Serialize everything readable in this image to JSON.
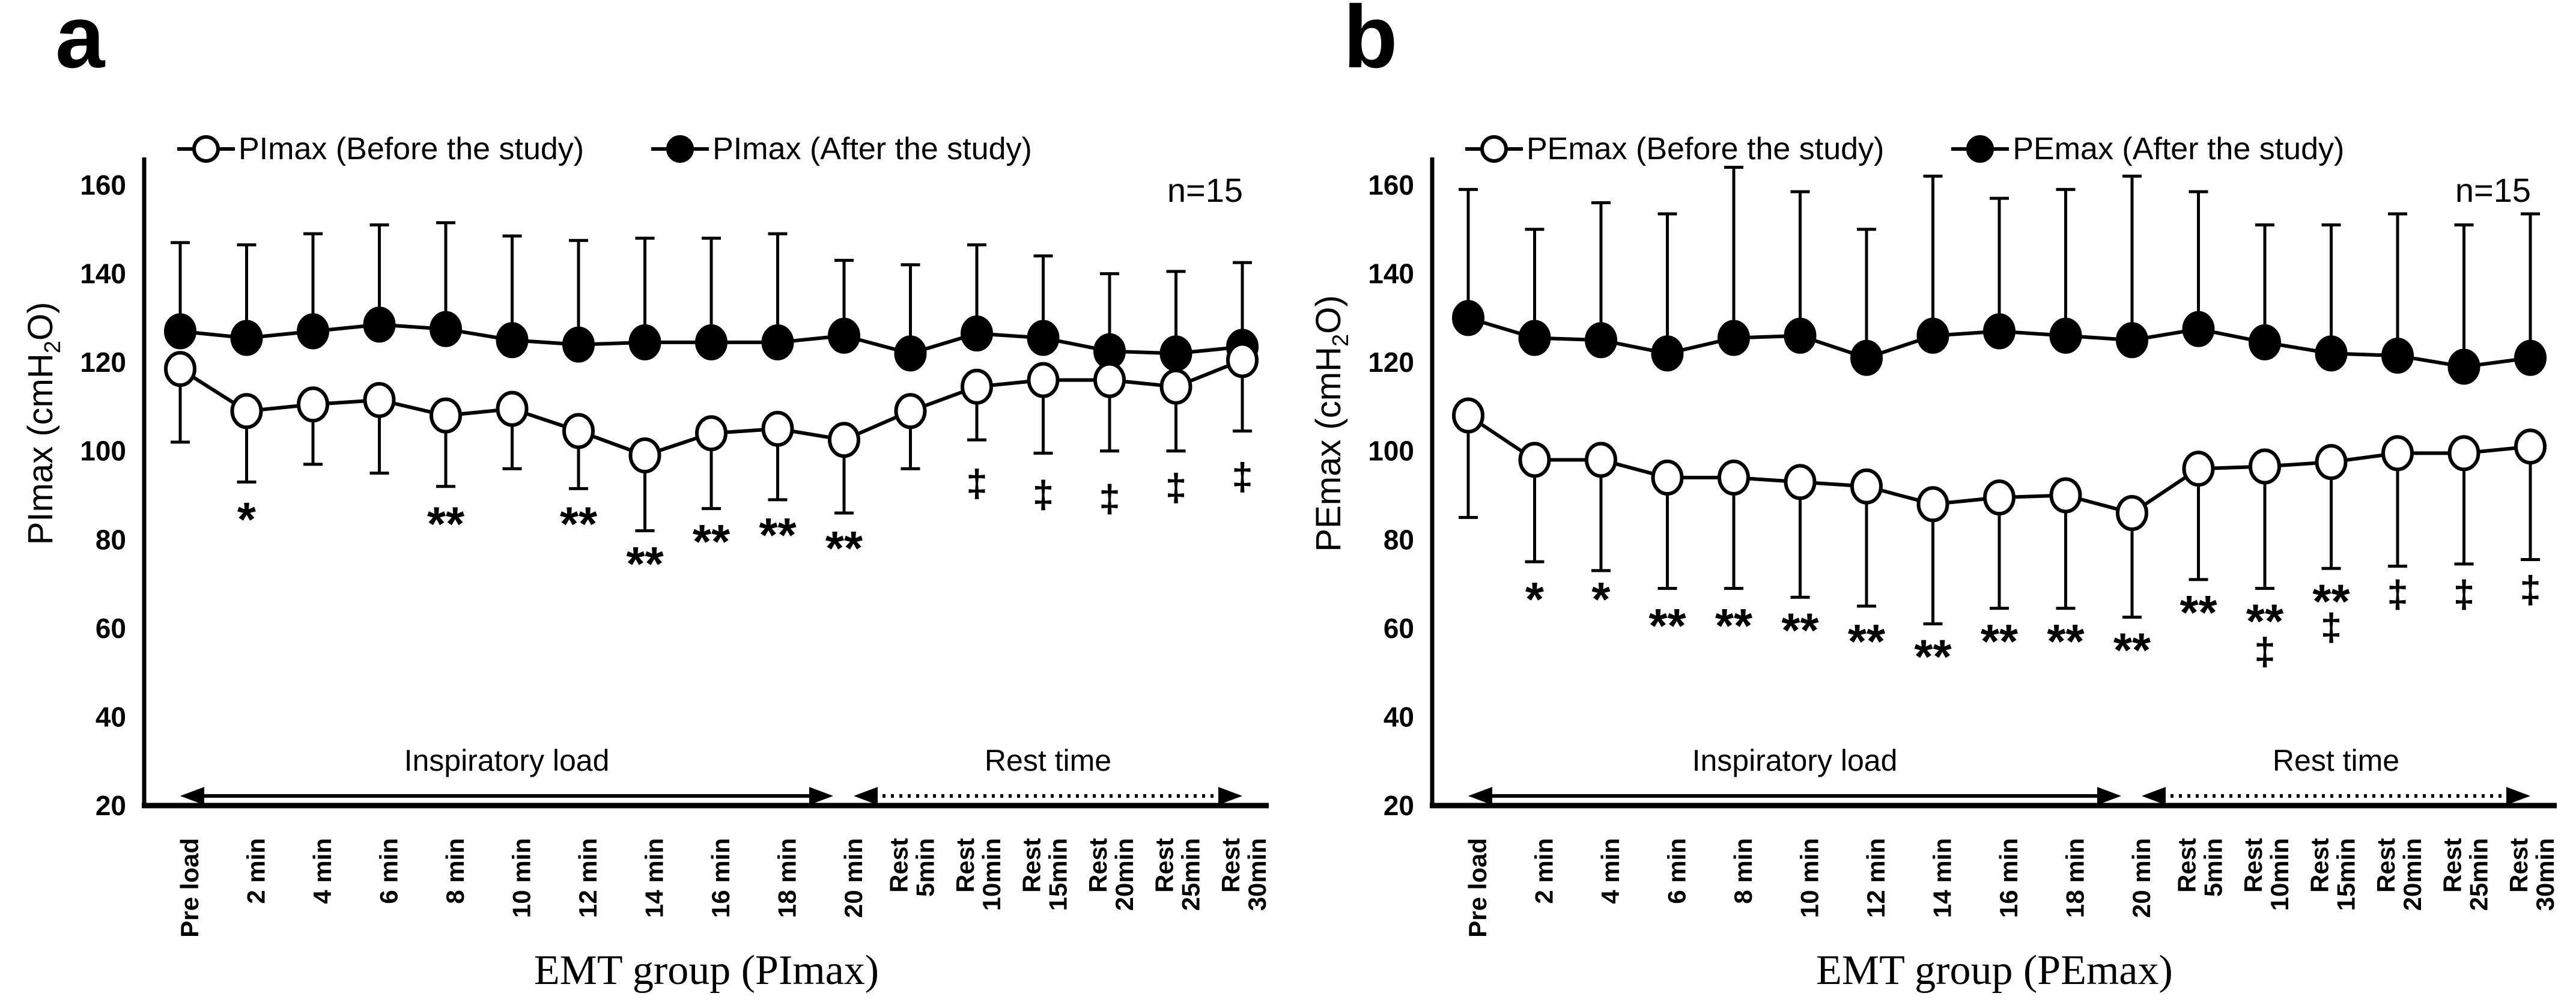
{
  "colors": {
    "line": "#000000",
    "background": "#ffffff"
  },
  "chart_data": [
    {
      "panel": "a",
      "type": "line",
      "n_label": "n=15",
      "xlabel": "EMT group (PImax)",
      "ylabel_pre": "PImax (cmH",
      "ylabel_sub": "2",
      "ylabel_post": "O)",
      "ylim": [
        20,
        170
      ],
      "yticks": [
        20,
        40,
        60,
        80,
        100,
        120,
        140,
        160
      ],
      "legend_position": "top",
      "grid": false,
      "categories": [
        "Pre load",
        "2 min",
        "4 min",
        "6 min",
        "8 min",
        "10 min",
        "12 min",
        "14 min",
        "16 min",
        "18 min",
        "20 min",
        [
          "Rest",
          "5min"
        ],
        [
          "Rest",
          "10min"
        ],
        [
          "Rest",
          "15min"
        ],
        [
          "Rest",
          "20min"
        ],
        [
          "Rest",
          "25min"
        ],
        [
          "Rest",
          "30min"
        ]
      ],
      "series": [
        {
          "name": "PImax (Before the study)",
          "marker": "open",
          "err_dir": "down",
          "values": [
            118.5,
            109,
            110.5,
            111.5,
            108,
            109.5,
            104.5,
            99,
            104,
            105,
            102.5,
            109,
            114.5,
            116,
            116,
            114.5,
            120.5
          ],
          "errors": [
            16.5,
            16,
            13.5,
            16.5,
            16,
            13.5,
            13,
            17,
            17,
            16,
            16.5,
            13,
            12,
            16.5,
            16,
            14.5,
            16
          ]
        },
        {
          "name": "PImax (After the study)",
          "marker": "filled",
          "err_dir": "up",
          "values": [
            127,
            125.5,
            127,
            128.5,
            127.5,
            125,
            124,
            124.5,
            124.5,
            124.5,
            126,
            122,
            126.5,
            125.5,
            122.5,
            122,
            123.5
          ],
          "errors": [
            20,
            21,
            22,
            22.5,
            24,
            23.5,
            23.5,
            23.5,
            23.5,
            24.5,
            17,
            20,
            20,
            18.5,
            17.5,
            18.5,
            19
          ]
        }
      ],
      "annotations": [
        {
          "i": 1,
          "sym": "*",
          "y": 86
        },
        {
          "i": 4,
          "sym": "**",
          "y": 85
        },
        {
          "i": 6,
          "sym": "**",
          "y": 85
        },
        {
          "i": 7,
          "sym": "**",
          "y": 76
        },
        {
          "i": 8,
          "sym": "**",
          "y": 81
        },
        {
          "i": 9,
          "sym": "**",
          "y": 82.5
        },
        {
          "i": 10,
          "sym": "**",
          "y": 79.5
        },
        {
          "i": 12,
          "sym": "‡",
          "y": 93
        },
        {
          "i": 13,
          "sym": "‡",
          "y": 90.5
        },
        {
          "i": 14,
          "sym": "‡",
          "y": 89.5
        },
        {
          "i": 15,
          "sym": "‡",
          "y": 92
        },
        {
          "i": 16,
          "sym": "‡",
          "y": 94.5
        }
      ],
      "regions": [
        {
          "label": "Inspiratory load",
          "from": 0,
          "to": 10,
          "style": "solid",
          "pad_left": 0,
          "pad_right": -18
        },
        {
          "label": "Rest time",
          "from": 10,
          "to": 16,
          "style": "dotted",
          "pad_left": 16,
          "pad_right": 0
        }
      ]
    },
    {
      "panel": "b",
      "type": "line",
      "n_label": "n=15",
      "xlabel": "EMT group (PEmax)",
      "ylabel_pre": "PEmax (cmH",
      "ylabel_sub": "2",
      "ylabel_post": "O)",
      "ylim": [
        20,
        170
      ],
      "yticks": [
        20,
        40,
        60,
        80,
        100,
        120,
        140,
        160
      ],
      "legend_position": "top",
      "grid": false,
      "categories": [
        "Pre load",
        "2 min",
        "4 min",
        "6 min",
        "8 min",
        "10 min",
        "12 min",
        "14 min",
        "16 min",
        "18 min",
        "20 min",
        [
          "Rest",
          "5min"
        ],
        [
          "Rest",
          "10min"
        ],
        [
          "Rest",
          "15min"
        ],
        [
          "Rest",
          "20min"
        ],
        [
          "Rest",
          "25min"
        ],
        [
          "Rest",
          "30min"
        ]
      ],
      "series": [
        {
          "name": "PEmax (Before the study)",
          "marker": "open",
          "err_dir": "down",
          "values": [
            108,
            98,
            98,
            94,
            94,
            93,
            92,
            88,
            89.5,
            90,
            86,
            96,
            96.5,
            97.5,
            99.5,
            99.5,
            101
          ],
          "errors": [
            23,
            23,
            25,
            25,
            25,
            26,
            27,
            27,
            25,
            25.5,
            23.5,
            25,
            27.5,
            24,
            25.5,
            25,
            25.5
          ]
        },
        {
          "name": "PEmax (After the study)",
          "marker": "filled",
          "err_dir": "up",
          "values": [
            130,
            125.5,
            125,
            122,
            125.5,
            126,
            121,
            126,
            127,
            126,
            125,
            127.5,
            124.5,
            122,
            121.5,
            119,
            121
          ],
          "errors": [
            29,
            24.5,
            31,
            31.5,
            38.5,
            32.5,
            29,
            36,
            30,
            33,
            37,
            31,
            26.5,
            29,
            32,
            32,
            32.5
          ]
        }
      ],
      "annotations": [
        {
          "i": 1,
          "sym": "*",
          "y": 68
        },
        {
          "i": 2,
          "sym": "*",
          "y": 68
        },
        {
          "i": 3,
          "sym": "**",
          "y": 62
        },
        {
          "i": 4,
          "sym": "**",
          "y": 62
        },
        {
          "i": 5,
          "sym": "**",
          "y": 61
        },
        {
          "i": 6,
          "sym": "**",
          "y": 58.5
        },
        {
          "i": 7,
          "sym": "**",
          "y": 55
        },
        {
          "i": 8,
          "sym": "**",
          "y": 58.5
        },
        {
          "i": 9,
          "sym": "**",
          "y": 58.5
        },
        {
          "i": 10,
          "sym": "**",
          "y": 56.5
        },
        {
          "i": 11,
          "sym": "**",
          "y": 65
        },
        {
          "i": 12,
          "sym": "**",
          "y": 63,
          "sym2": "‡",
          "y2": 55
        },
        {
          "i": 13,
          "sym": "**",
          "y": 67.5,
          "sym2": "‡",
          "y2": 60.5
        },
        {
          "i": 14,
          "sym": "‡",
          "y": 68
        },
        {
          "i": 15,
          "sym": "‡",
          "y": 68
        },
        {
          "i": 16,
          "sym": "‡",
          "y": 69
        }
      ],
      "regions": [
        {
          "label": "Inspiratory load",
          "from": 0,
          "to": 10,
          "style": "solid",
          "pad_left": 0,
          "pad_right": -18
        },
        {
          "label": "Rest time",
          "from": 10,
          "to": 16,
          "style": "dotted",
          "pad_left": 16,
          "pad_right": 0
        }
      ]
    }
  ]
}
